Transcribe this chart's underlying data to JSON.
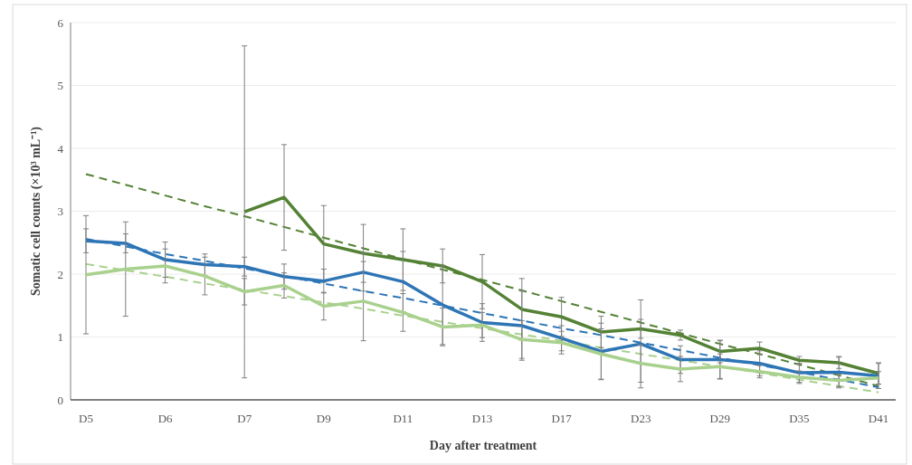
{
  "chart_data": {
    "type": "line",
    "xlabel": "Day after treatment",
    "ylabel": "Somatic cell counts (×10³ mL⁻¹)",
    "categories": [
      "D5",
      null,
      "D6",
      null,
      "D7",
      null,
      "D9",
      null,
      "D11",
      null,
      "D13",
      null,
      "D17",
      null,
      "D23",
      null,
      "D29",
      null,
      "D35",
      null,
      "D41"
    ],
    "ylim": [
      0,
      6
    ],
    "yticks": [
      0,
      1,
      2,
      3,
      4,
      5,
      6
    ],
    "grid": "y",
    "marker": "none",
    "series": [
      {
        "color": "#548235",
        "line_style": "solid",
        "values": [
          null,
          null,
          null,
          null,
          2.99,
          3.22,
          2.48,
          2.33,
          2.23,
          2.13,
          1.88,
          1.44,
          1.32,
          1.08,
          1.13,
          1.03,
          0.77,
          0.82,
          0.63,
          0.59,
          0.42
        ],
        "errors": [
          null,
          null,
          null,
          null,
          2.64,
          0.84,
          0.61,
          0.46,
          0.49,
          0.27,
          0.43,
          0.49,
          0.31,
          0.25,
          0.15,
          0.08,
          0.18,
          0.1,
          0.06,
          0.09,
          0.17
        ]
      },
      {
        "color": "#2e75b6",
        "line_style": "solid",
        "values": [
          2.53,
          2.49,
          2.23,
          2.15,
          2.12,
          1.96,
          1.89,
          2.03,
          1.88,
          1.51,
          1.23,
          1.18,
          0.98,
          0.77,
          0.89,
          0.64,
          0.64,
          0.58,
          0.43,
          0.44,
          0.38
        ],
        "errors": [
          0.19,
          0.15,
          0.28,
          0.17,
          0.15,
          0.2,
          0.19,
          0.3,
          0.48,
          0.63,
          0.3,
          0.55,
          0.2,
          0.45,
          0.7,
          0.22,
          0.3,
          0.2,
          0.15,
          0.25,
          0.2
        ]
      },
      {
        "color": "#a9d18e",
        "line_style": "solid",
        "values": [
          1.99,
          2.08,
          2.13,
          1.97,
          1.72,
          1.82,
          1.49,
          1.57,
          1.39,
          1.16,
          1.19,
          0.96,
          0.91,
          0.73,
          0.58,
          0.49,
          0.53,
          0.45,
          0.36,
          0.31,
          0.35
        ],
        "errors": [
          0.94,
          0.75,
          0.27,
          0.3,
          0.21,
          0.2,
          0.22,
          0.63,
          0.3,
          0.3,
          0.2,
          0.3,
          0.18,
          0.4,
          0.3,
          0.2,
          0.2,
          0.1,
          0.1,
          0.1,
          0.1
        ]
      },
      {
        "type": "line",
        "color": "#548235",
        "line_style": "dashed",
        "values": [
          3.59,
          3.42,
          3.25,
          3.08,
          2.92,
          2.75,
          2.58,
          2.41,
          2.24,
          2.07,
          1.91,
          1.74,
          1.57,
          1.4,
          1.23,
          1.06,
          0.89,
          0.73,
          0.56,
          0.39,
          0.22
        ]
      },
      {
        "type": "line",
        "color": "#2e75b6",
        "line_style": "dashed",
        "values": [
          2.56,
          2.44,
          2.32,
          2.21,
          2.09,
          1.97,
          1.85,
          1.73,
          1.62,
          1.5,
          1.38,
          1.26,
          1.14,
          1.03,
          0.91,
          0.79,
          0.67,
          0.55,
          0.44,
          0.32,
          0.2
        ]
      },
      {
        "type": "line",
        "color": "#a9d18e",
        "line_style": "dashed",
        "values": [
          2.16,
          2.06,
          1.96,
          1.85,
          1.75,
          1.65,
          1.55,
          1.45,
          1.34,
          1.24,
          1.14,
          1.04,
          0.94,
          0.83,
          0.73,
          0.63,
          0.53,
          0.43,
          0.32,
          0.22,
          0.12
        ]
      }
    ]
  }
}
